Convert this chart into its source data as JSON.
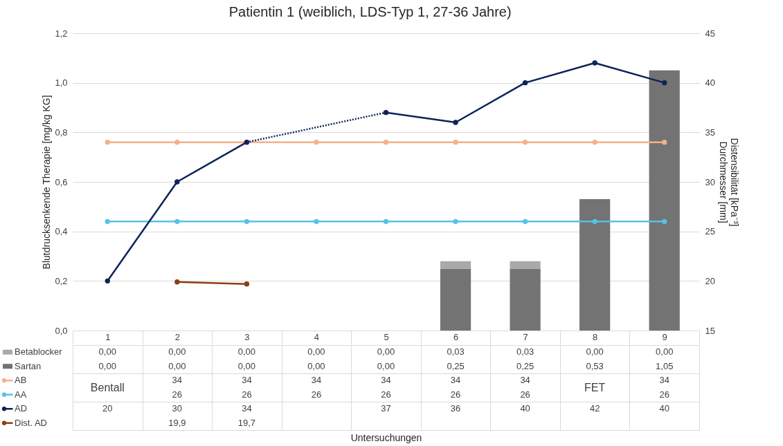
{
  "chart_data": {
    "type": "bar",
    "title": "Patientin 1 (weiblich, LDS-Typ 1, 27-36 Jahre)",
    "ylabel": "Blutdrucksenkende Therapie [mg/kg KG]",
    "y2label": "Distensibilität [kPa⁻³]\nDurchmesser [mm]",
    "categories": [
      "1",
      "2",
      "3",
      "4",
      "5",
      "6",
      "7",
      "8",
      "9"
    ],
    "stacked": true,
    "grid": "y",
    "legend": "bottom left",
    "marker": "circle",
    "ylim": [
      0,
      1.2
    ],
    "yticks": [
      {
        "value": 0,
        "label": "0,0"
      },
      {
        "value": 0.2,
        "label": "0,2"
      },
      {
        "value": 0.4,
        "label": "0,4"
      },
      {
        "value": 0.6,
        "label": "0,6"
      },
      {
        "value": 0.8,
        "label": "0,8"
      },
      {
        "value": 1,
        "label": "1,0"
      },
      {
        "value": 1.2,
        "label": "1,2"
      }
    ],
    "y2lim": [
      15,
      45
    ],
    "y2ticks": [
      15,
      20,
      25,
      30,
      35,
      40,
      45
    ],
    "series": [
      {
        "name": "Sartan",
        "color": "#737373",
        "values": [
          0,
          0,
          0,
          0,
          0,
          0.25,
          0.25,
          0.53,
          1.05
        ],
        "value_labels": [
          "0,00",
          "0,00",
          "0,00",
          "0,00",
          "0,00",
          "0,25",
          "0,25",
          "0,53",
          "1,05"
        ]
      },
      {
        "name": "Betablocker",
        "color": "#a9a9a9",
        "values": [
          0,
          0,
          0,
          0,
          0,
          0.03,
          0.03,
          0,
          0
        ],
        "value_labels": [
          "0,00",
          "0,00",
          "0,00",
          "0,00",
          "0,00",
          "0,03",
          "0,03",
          "0,00",
          "0,00"
        ]
      },
      {
        "name": "AB",
        "type": "line",
        "axis": "y2",
        "color": "#f4b08a",
        "values": [
          34,
          34,
          34,
          34,
          34,
          34,
          34,
          34,
          34
        ],
        "value_labels": [
          null,
          "34",
          "34",
          "34",
          "34",
          "34",
          "34",
          null,
          "34"
        ]
      },
      {
        "name": "AA",
        "type": "line",
        "axis": "y2",
        "color": "#56c1ea",
        "values": [
          26,
          26,
          26,
          26,
          26,
          26,
          26,
          26,
          26
        ],
        "value_labels": [
          null,
          "26",
          "26",
          "26",
          "26",
          "26",
          "26",
          null,
          "26"
        ]
      },
      {
        "name": "AD",
        "type": "line",
        "axis": "y2",
        "color": "#0c2458",
        "values": [
          20,
          30,
          34,
          null,
          37,
          36,
          40,
          42,
          40
        ],
        "value_labels": [
          "20",
          "30",
          "34",
          null,
          "37",
          "36",
          "40",
          "42",
          "40"
        ]
      },
      {
        "name": "Dist. AD",
        "type": "line",
        "axis": "y2",
        "color": "#8e3d12",
        "values": [
          null,
          19.9,
          19.7,
          null,
          null,
          null,
          null,
          null,
          null
        ],
        "value_labels": [
          null,
          "19,9",
          "19,7",
          null,
          null,
          null,
          null,
          null,
          null
        ]
      }
    ],
    "annotations": [
      "Bentall",
      "FET",
      "Untersuchungen"
    ]
  }
}
